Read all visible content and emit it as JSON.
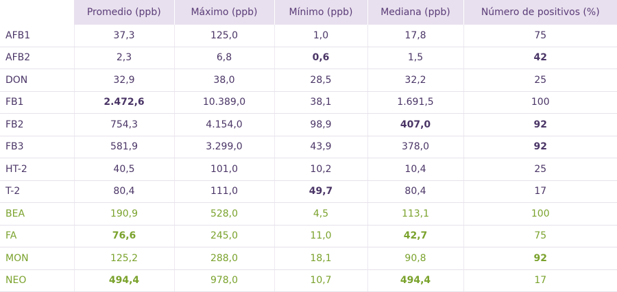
{
  "header": [
    "Promedio (ppb)",
    "Máximo (ppb)",
    "Mínimo (ppb)",
    "Mediana (ppb)",
    "Número de positivos (%)"
  ],
  "colors": {
    "purple_text": "#4a3566",
    "green_text": "#7aa22c",
    "header_bg": "#e8e0ee"
  },
  "rows": [
    {
      "name": "AFB1",
      "group": "purple",
      "values": [
        "37,3",
        "125,0",
        "1,0",
        "17,8",
        "75"
      ],
      "bold": []
    },
    {
      "name": "AFB2",
      "group": "purple",
      "values": [
        "2,3",
        "6,8",
        "0,6",
        "1,5",
        "42"
      ],
      "bold": [
        2,
        4
      ]
    },
    {
      "name": "DON",
      "group": "purple",
      "values": [
        "32,9",
        "38,0",
        "28,5",
        "32,2",
        "25"
      ],
      "bold": []
    },
    {
      "name": "FB1",
      "group": "purple",
      "values": [
        "2.472,6",
        "10.389,0",
        "38,1",
        "1.691,5",
        "100"
      ],
      "bold": [
        0
      ]
    },
    {
      "name": "FB2",
      "group": "purple",
      "values": [
        "754,3",
        "4.154,0",
        "98,9",
        "407,0",
        "92"
      ],
      "bold": [
        3,
        4
      ]
    },
    {
      "name": "FB3",
      "group": "purple",
      "values": [
        "581,9",
        "3.299,0",
        "43,9",
        "378,0",
        "92"
      ],
      "bold": [
        4
      ]
    },
    {
      "name": "HT-2",
      "group": "purple",
      "values": [
        "40,5",
        "101,0",
        "10,2",
        "10,4",
        "25"
      ],
      "bold": []
    },
    {
      "name": "T-2",
      "group": "purple",
      "values": [
        "80,4",
        "111,0",
        "49,7",
        "80,4",
        "17"
      ],
      "bold": [
        2
      ]
    },
    {
      "name": "BEA",
      "group": "green",
      "values": [
        "190,9",
        "528,0",
        "4,5",
        "113,1",
        "100"
      ],
      "bold": []
    },
    {
      "name": "FA",
      "group": "green",
      "values": [
        "76,6",
        "245,0",
        "11,0",
        "42,7",
        "75"
      ],
      "bold": [
        0,
        3
      ]
    },
    {
      "name": "MON",
      "group": "green",
      "values": [
        "125,2",
        "288,0",
        "18,1",
        "90,8",
        "92"
      ],
      "bold": [
        4
      ]
    },
    {
      "name": "NEO",
      "group": "green",
      "values": [
        "494,4",
        "978,0",
        "10,7",
        "494,4",
        "17"
      ],
      "bold": [
        0,
        3
      ]
    }
  ]
}
